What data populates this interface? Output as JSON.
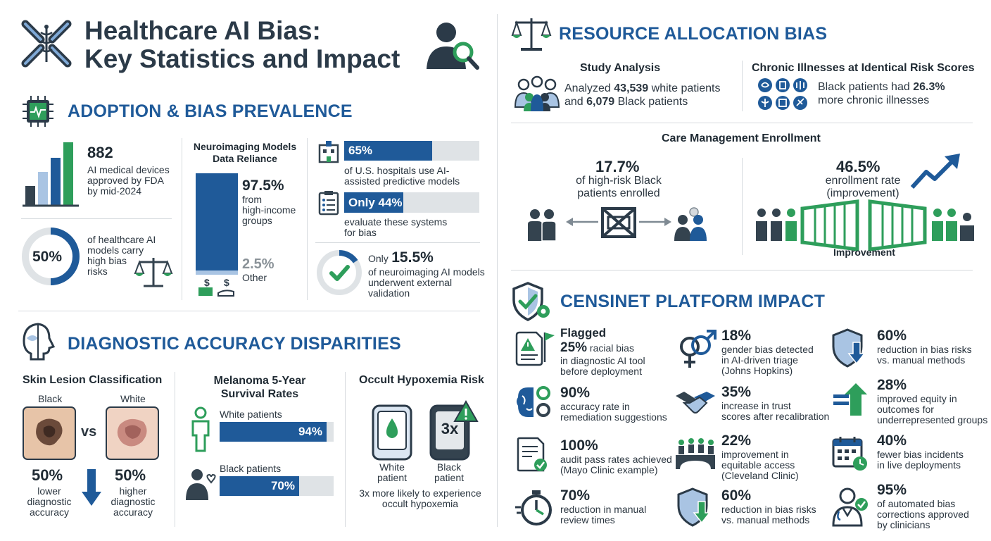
{
  "header": {
    "title_line1": "Healthcare AI Bias:",
    "title_line2": "Key Statistics and Impact"
  },
  "adoption": {
    "title": "ADOPTION & BIAS PREVALENCE",
    "fda": {
      "value": "882",
      "text1": "AI medical devices",
      "text2": "approved by FDA",
      "text3": "by mid-2024"
    },
    "high_risk": {
      "value": "50%",
      "fraction": 0.5,
      "text1": "of healthcare AI",
      "text2": "models carry",
      "text3": "high bias",
      "text4": "risks"
    },
    "neuro": {
      "title1": "Neuroimaging Models",
      "title2": "Data Reliance",
      "main_value": "97.5%",
      "main_text1": "from",
      "main_text2": "high-income",
      "main_text3": "groups",
      "other_value": "2.5%",
      "other_text": "Other"
    },
    "hospitals": {
      "value": "65%",
      "fraction": 0.65,
      "text1": "of U.S. hospitals use AI-",
      "text2": "assisted predictive models"
    },
    "evaluate": {
      "value": "Only 44%",
      "fraction": 0.44,
      "text1": "evaluate these systems",
      "text2": "for bias"
    },
    "validation": {
      "prefix": "Only",
      "value": "15.5%",
      "fraction": 0.155,
      "text1": "of neuroimaging AI models",
      "text2": "underwent external",
      "text3": "validation"
    }
  },
  "diagnostic": {
    "title": "DIAGNOSTIC ACCURACY DISPARITIES",
    "skin": {
      "title": "Skin Lesion Classification",
      "black_label": "Black",
      "white_label": "White",
      "vs": "vs",
      "black_value": "50%",
      "black_text1": "lower",
      "black_text2": "diagnostic",
      "black_text3": "accuracy",
      "white_value": "50%",
      "white_text1": "higher",
      "white_text2": "diagnostic",
      "white_text3": "accuracy"
    },
    "melanoma": {
      "title1": "Melanoma 5-Year",
      "title2": "Survival Rates",
      "white_label": "White patients",
      "white_value": "94%",
      "white_fraction": 0.94,
      "black_label": "Black patients",
      "black_value": "70%",
      "black_fraction": 0.7
    },
    "hypoxemia": {
      "title": "Occult Hypoxemia Risk",
      "badge": "3x",
      "white_label1": "White",
      "white_label2": "patient",
      "black_label1": "Black",
      "black_label2": "patient",
      "text1": "3x more likely to experience",
      "text2": "occult hypoxemia"
    }
  },
  "resource": {
    "title": "RESOURCE ALLOCATION BIAS",
    "study": {
      "title": "Study Analysis",
      "line1_pre": "Analyzed ",
      "line1_num": "43,539",
      "line1_post": " white patients",
      "line2_pre": "and ",
      "line2_num": "6,079",
      "line2_post": " Black patients"
    },
    "chronic": {
      "title": "Chronic Illnesses at Identical Risk Scores",
      "line1_pre": "Black patients had ",
      "line1_num": "26.3%",
      "line2": "more chronic illnesses"
    },
    "enrollment": {
      "title": "Care Management Enrollment",
      "left_value": "17.7%",
      "left_text1": "of high-risk Black",
      "left_text2": "patients enrolled",
      "right_value": "46.5%",
      "right_text1": "enrollment rate",
      "right_text2": "(improvement)",
      "improvement": "Improvement"
    }
  },
  "censinet": {
    "title": "CENSINET PLATFORM IMPACT",
    "items": [
      {
        "heading": "Flagged",
        "value": "25%",
        "inline": " racial bias",
        "text1": "in diagnostic AI tool",
        "text2": "before deployment",
        "text3": ""
      },
      {
        "heading": "",
        "value": "18%",
        "inline": "",
        "text1": "gender bias detected",
        "text2": "in AI-driven triage",
        "text3": "(Johns Hopkins)"
      },
      {
        "heading": "",
        "value": "60%",
        "inline": "",
        "text1": "reduction in bias risks",
        "text2": "vs. manual methods",
        "text3": ""
      },
      {
        "heading": "",
        "value": "90%",
        "inline": "",
        "text1": "accuracy rate in",
        "text2": "remediation suggestions",
        "text3": ""
      },
      {
        "heading": "",
        "value": "35%",
        "inline": "",
        "text1": "increase in trust",
        "text2": "scores after recalibration",
        "text3": ""
      },
      {
        "heading": "",
        "value": "28%",
        "inline": "",
        "text1": "improved equity in",
        "text2": "outcomes for",
        "text3": "underrepresented groups"
      },
      {
        "heading": "",
        "value": "100%",
        "inline": "",
        "text1": "audit pass rates achieved",
        "text2": "(Mayo Clinic example)",
        "text3": ""
      },
      {
        "heading": "",
        "value": "22%",
        "inline": "",
        "text1": "improvement in",
        "text2": "equitable access",
        "text3": "(Cleveland Clinic)"
      },
      {
        "heading": "",
        "value": "40%",
        "inline": "",
        "text1": "fewer bias incidents",
        "text2": "in live deployments",
        "text3": ""
      },
      {
        "heading": "",
        "value": "70%",
        "inline": "",
        "text1": "reduction in manual",
        "text2": "review times",
        "text3": ""
      },
      {
        "heading": "",
        "value": "60%",
        "inline": "",
        "text1": "reduction in bias risks",
        "text2": "vs. manual methods",
        "text3": ""
      },
      {
        "heading": "",
        "value": "95%",
        "inline": "",
        "text1": "of automated bias",
        "text2": "corrections approved",
        "text3": "by clinicians"
      }
    ]
  },
  "colors": {
    "navy": "#1f5a99",
    "green": "#2e9e5b",
    "dark": "#34434f",
    "light_blue": "#a9c4e3",
    "gray": "#dfe3e6"
  }
}
